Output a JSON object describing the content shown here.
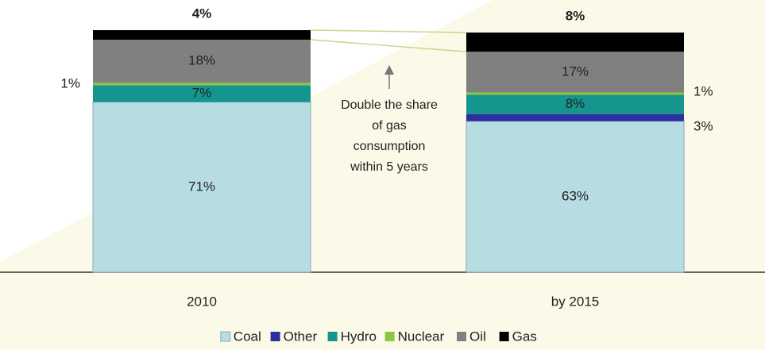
{
  "chart_data": {
    "type": "stacked_bar",
    "categories": [
      "2010",
      "by 2015"
    ],
    "series": [
      {
        "name": "Coal",
        "color": "#b7dde3",
        "values": [
          71,
          63
        ],
        "value_labels": [
          "71%",
          "63%"
        ]
      },
      {
        "name": "Other",
        "color": "#2e2e9e",
        "values": [
          null,
          3
        ],
        "value_labels": [
          null,
          "3%"
        ]
      },
      {
        "name": "Hydro",
        "color": "#14968f",
        "values": [
          7,
          8
        ],
        "value_labels": [
          "7%",
          "8%"
        ]
      },
      {
        "name": "Nuclear",
        "color": "#8fc63f",
        "values": [
          1,
          1
        ],
        "value_labels": [
          "1%",
          "1%"
        ]
      },
      {
        "name": "Oil",
        "color": "#808080",
        "values": [
          18,
          17
        ],
        "value_labels": [
          "18%",
          "17%"
        ]
      },
      {
        "name": "Gas",
        "color": "#000000",
        "values": [
          4,
          8
        ],
        "value_labels": [
          "4%",
          "8%"
        ]
      }
    ],
    "ylim": [
      0,
      100
    ],
    "annotation": [
      "Double the share",
      "of gas",
      "consumption",
      "within 5 years"
    ],
    "legend": "bottom"
  }
}
